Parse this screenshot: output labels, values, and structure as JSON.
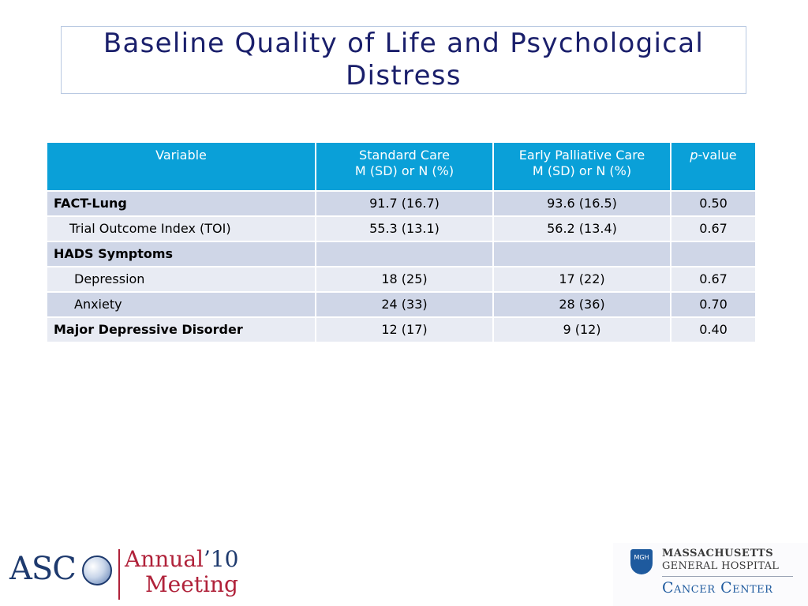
{
  "slide": {
    "title": "Baseline Quality of Life and Psychological Distress"
  },
  "table": {
    "headers": [
      {
        "line1": "Variable",
        "line2": ""
      },
      {
        "line1": "Standard Care",
        "line2": "M (SD) or N (%)"
      },
      {
        "line1": "Early Palliative Care",
        "line2": "M (SD) or N (%)"
      },
      {
        "line1_italic": "p",
        "line1": "-value",
        "line2": ""
      }
    ],
    "rows": [
      {
        "label": "FACT-Lung",
        "standard": "91.7 (16.7)",
        "early": "93.6 (16.5)",
        "p": "0.50"
      },
      {
        "label": "Trial Outcome Index (TOI)",
        "standard": "55.3 (13.1)",
        "early": "56.2 (13.4)",
        "p": "0.67"
      },
      {
        "label": "HADS Symptoms",
        "standard": "",
        "early": "",
        "p": ""
      },
      {
        "label": "Depression",
        "standard": "18 (25)",
        "early": "17 (22)",
        "p": "0.67"
      },
      {
        "label": "Anxiety",
        "standard": "24 (33)",
        "early": "28 (36)",
        "p": "0.70"
      },
      {
        "label": "Major Depressive Disorder",
        "standard": "12 (17)",
        "early": "9 (12)",
        "p": "0.40"
      }
    ]
  },
  "logos": {
    "asco": {
      "wordmark": "ASC",
      "annual": "Annual",
      "year": "’10",
      "meeting": "Meeting"
    },
    "mgh": {
      "shield": "MGH",
      "line1": "MASSACHUSETTS",
      "line2": "GENERAL HOSPITAL",
      "center": "Cancer Center"
    }
  },
  "colors": {
    "title": "#1a1f6b",
    "header_bg": "#0aa0d8",
    "row_dark": "#cfd6e7",
    "row_light": "#e8ebf3"
  }
}
